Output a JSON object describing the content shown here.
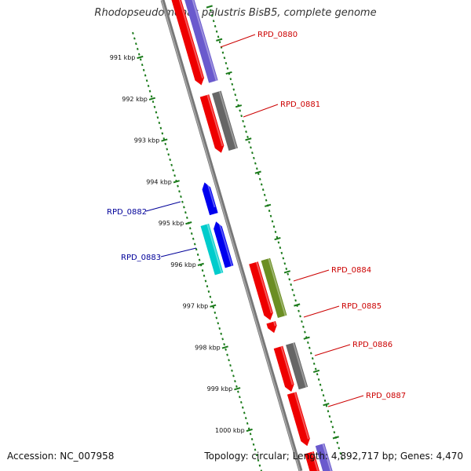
{
  "title": "Rhodopseudomonas palustris BisB5, complete genome",
  "footer": {
    "accession": "Accession: NC_007958",
    "info": "Topology: circular; Length: 4,892,717 bp; Genes: 4,470"
  },
  "colors": {
    "forward_label": "#cc0000",
    "reverse_label": "#000099",
    "backbone": "#888888",
    "ruler": "#1a7a1a"
  },
  "kbp_ticks": [
    "991 kbp",
    "992 kbp",
    "993 kbp",
    "994 kbp",
    "995 kbp",
    "996 kbp",
    "997 kbp",
    "998 kbp",
    "999 kbp",
    "1000 kbp"
  ],
  "gene_labels": [
    {
      "name": "RPD_0880",
      "strand": "forward"
    },
    {
      "name": "RPD_0881",
      "strand": "forward"
    },
    {
      "name": "RPD_0882",
      "strand": "reverse"
    },
    {
      "name": "RPD_0883",
      "strand": "reverse"
    },
    {
      "name": "RPD_0884",
      "strand": "forward"
    },
    {
      "name": "RPD_0885",
      "strand": "forward"
    },
    {
      "name": "RPD_0886",
      "strand": "forward"
    },
    {
      "name": "RPD_0887",
      "strand": "forward"
    }
  ],
  "feature_colors": {
    "cds": "#ee0000",
    "cog_purple": "#6a5acd",
    "cog_gray": "#666666",
    "reverse_blue": "#0000ee",
    "reverse_cyan": "#00cccc",
    "cog_olive": "#6b8e23"
  }
}
